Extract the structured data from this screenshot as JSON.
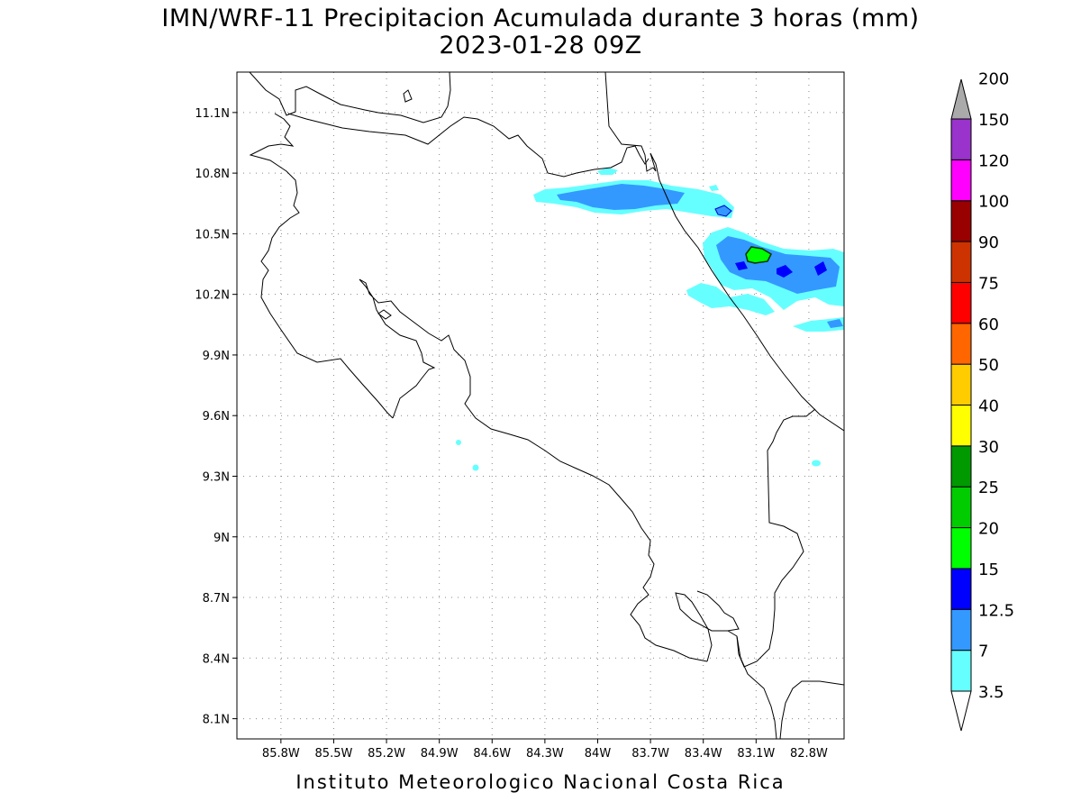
{
  "title_line1": "IMN/WRF-11 Precipitacion Acumulada durante 3 horas (mm)",
  "title_line2": "2023-01-28 09Z",
  "credit": "Instituto Meteorologico Nacional Costa Rica",
  "map": {
    "lon_range": [
      -86.05,
      -82.6
    ],
    "lat_range": [
      8.0,
      11.3
    ],
    "grid": "dotted",
    "x_ticks": [
      "85.8W",
      "85.5W",
      "85.2W",
      "84.9W",
      "84.6W",
      "84.3W",
      "84W",
      "83.7W",
      "83.4W",
      "83.1W",
      "82.8W"
    ],
    "x_tick_values": [
      -85.8,
      -85.5,
      -85.2,
      -84.9,
      -84.6,
      -84.3,
      -84.0,
      -83.7,
      -83.4,
      -83.1,
      -82.8
    ],
    "y_ticks": [
      "8.1N",
      "8.4N",
      "8.7N",
      "9N",
      "9.3N",
      "9.6N",
      "9.9N",
      "10.2N",
      "10.5N",
      "10.8N",
      "11.1N"
    ],
    "y_tick_values": [
      8.1,
      8.4,
      8.7,
      9.0,
      9.3,
      9.6,
      9.9,
      10.2,
      10.5,
      10.8,
      11.1
    ]
  },
  "colorbar": {
    "labels": [
      "3.5",
      "7",
      "12.5",
      "15",
      "20",
      "25",
      "30",
      "40",
      "50",
      "60",
      "75",
      "90",
      "100",
      "120",
      "150",
      "200"
    ],
    "colors": [
      "#66ffff",
      "#3399ff",
      "#0000ff",
      "#00ff00",
      "#00cc00",
      "#009900",
      "#ffff00",
      "#ffcc00",
      "#ff6600",
      "#ff0000",
      "#cc3300",
      "#990000",
      "#ff00ff",
      "#9933cc",
      "#f2f2f2",
      "#aaaaaa"
    ]
  }
}
